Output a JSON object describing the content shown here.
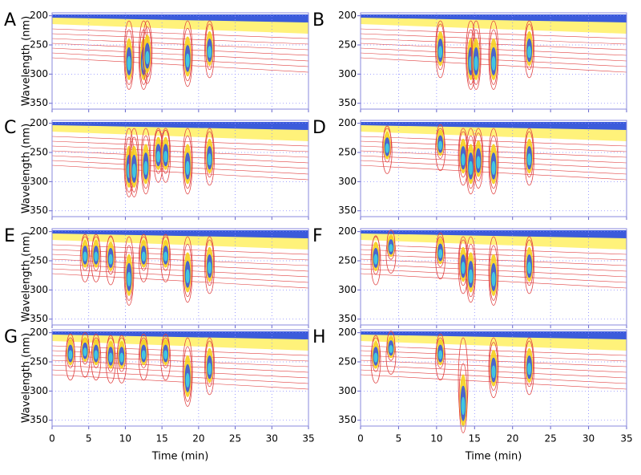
{
  "chart_data": [
    {
      "type": "contour",
      "label": "A",
      "x": [
        10.5,
        12.5,
        13,
        18.5,
        21.5
      ],
      "values": [
        285,
        285,
        275,
        280,
        265
      ],
      "xlim": [
        0,
        35
      ],
      "ylim": [
        195,
        360
      ],
      "xticks": [
        0,
        5,
        10,
        15,
        20,
        25,
        30,
        35
      ],
      "yticks": [
        200,
        250,
        300,
        350
      ],
      "ylabel": "Wavelength (nm)",
      "xtick_labels": false,
      "grid": true
    },
    {
      "type": "contour",
      "label": "B",
      "x": [
        10.5,
        14.5,
        15.2,
        17.5,
        22.2
      ],
      "values": [
        265,
        285,
        285,
        285,
        265
      ],
      "xlim": [
        0,
        35
      ],
      "ylim": [
        195,
        360
      ],
      "xticks": [
        0,
        5,
        10,
        15,
        20,
        25,
        30,
        35
      ],
      "yticks": [
        200,
        250,
        300,
        350
      ],
      "xtick_labels": false,
      "grid": true
    },
    {
      "type": "contour",
      "label": "C",
      "x": [
        10.5,
        11.2,
        12.8,
        14.5,
        15.5,
        18.5,
        21.5
      ],
      "values": [
        285,
        285,
        280,
        260,
        260,
        280,
        265
      ],
      "xlim": [
        0,
        35
      ],
      "ylim": [
        195,
        360
      ],
      "xticks": [
        0,
        5,
        10,
        15,
        20,
        25,
        30,
        35
      ],
      "yticks": [
        200,
        250,
        300,
        350
      ],
      "ylabel": "Wavelength (nm)",
      "xtick_labels": false,
      "grid": true
    },
    {
      "type": "contour",
      "label": "D",
      "x": [
        3.5,
        10.5,
        13.5,
        14.5,
        15.5,
        17.5,
        22.2
      ],
      "values": [
        245,
        240,
        265,
        280,
        270,
        280,
        265
      ],
      "xlim": [
        0,
        35
      ],
      "ylim": [
        195,
        360
      ],
      "xticks": [
        0,
        5,
        10,
        15,
        20,
        25,
        30,
        35
      ],
      "yticks": [
        200,
        250,
        300,
        350
      ],
      "xtick_labels": false,
      "grid": true
    },
    {
      "type": "contour",
      "label": "E",
      "x": [
        4.5,
        6,
        8,
        10.5,
        12.5,
        15.5,
        18.5,
        21.5
      ],
      "values": [
        245,
        245,
        250,
        285,
        245,
        245,
        280,
        265
      ],
      "xlim": [
        0,
        35
      ],
      "ylim": [
        195,
        360
      ],
      "xticks": [
        0,
        5,
        10,
        15,
        20,
        25,
        30,
        35
      ],
      "yticks": [
        200,
        250,
        300,
        350
      ],
      "ylabel": "Wavelength (nm)",
      "xtick_labels": false,
      "grid": true
    },
    {
      "type": "contour",
      "label": "F",
      "x": [
        2,
        4,
        10.5,
        13.5,
        14.5,
        17.5,
        22.2
      ],
      "values": [
        250,
        230,
        240,
        265,
        280,
        285,
        265
      ],
      "xlim": [
        0,
        35
      ],
      "ylim": [
        195,
        360
      ],
      "xticks": [
        0,
        5,
        10,
        15,
        20,
        25,
        30,
        35
      ],
      "yticks": [
        200,
        250,
        300,
        350
      ],
      "xtick_labels": false,
      "grid": true
    },
    {
      "type": "contour",
      "label": "G",
      "x": [
        2.5,
        4.5,
        6,
        8,
        9.5,
        12.5,
        15.5,
        18.5,
        21.5
      ],
      "values": [
        240,
        235,
        240,
        245,
        245,
        240,
        240,
        285,
        265
      ],
      "xlim": [
        0,
        35
      ],
      "ylim": [
        195,
        360
      ],
      "xticks": [
        0,
        5,
        10,
        15,
        20,
        25,
        30,
        35
      ],
      "yticks": [
        200,
        250,
        300,
        350
      ],
      "ylabel": "Wavelength (nm)",
      "xlabel": "Time (min)",
      "xtick_labels": true,
      "grid": true
    },
    {
      "type": "contour",
      "label": "H",
      "x": [
        2,
        4,
        10.5,
        13.5,
        17.5,
        22.2
      ],
      "values": [
        245,
        230,
        240,
        330,
        270,
        265
      ],
      "xlim": [
        0,
        35
      ],
      "ylim": [
        195,
        360
      ],
      "xticks": [
        0,
        5,
        10,
        15,
        20,
        25,
        30,
        35
      ],
      "yticks": [
        200,
        250,
        300,
        350
      ],
      "xlabel": "Time (min)",
      "xtick_labels": true,
      "grid": true
    }
  ]
}
